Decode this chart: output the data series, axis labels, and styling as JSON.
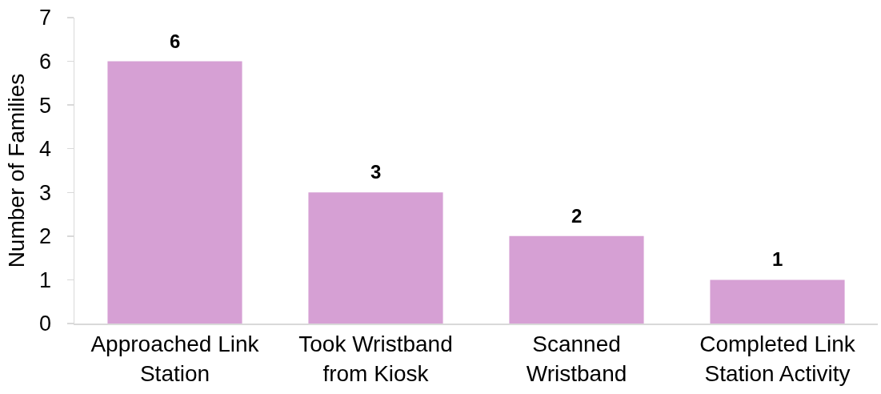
{
  "chart_data": {
    "type": "bar",
    "ylabel": "Number of Families",
    "categories": [
      "Approached Link Station",
      "Took Wristband from Kiosk",
      "Scanned Wristband",
      "Completed Link Station Activity"
    ],
    "values": [
      6,
      3,
      2,
      1
    ],
    "color": "#d6a0d4",
    "ylim": [
      0,
      7
    ],
    "yticks": [
      0,
      1,
      2,
      3,
      4,
      5,
      6,
      7
    ],
    "data_labels": true
  }
}
